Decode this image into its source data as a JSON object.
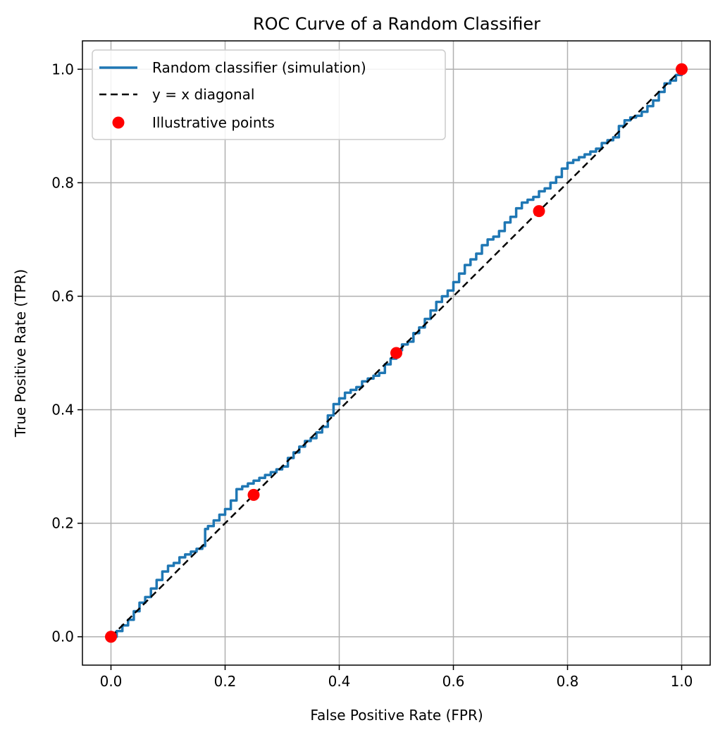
{
  "chart_data": {
    "type": "line",
    "title": "ROC Curve of a Random Classifier",
    "xlabel": "False Positive Rate (FPR)",
    "ylabel": "True Positive Rate (TPR)",
    "xlim": [
      -0.05,
      1.05
    ],
    "ylim": [
      -0.05,
      1.05
    ],
    "xticks": [
      0.0,
      0.2,
      0.4,
      0.6,
      0.8,
      1.0
    ],
    "yticks": [
      0.0,
      0.2,
      0.4,
      0.6,
      0.8,
      1.0
    ],
    "xtick_labels": [
      "0.0",
      "0.2",
      "0.4",
      "0.6",
      "0.8",
      "1.0"
    ],
    "ytick_labels": [
      "0.0",
      "0.2",
      "0.4",
      "0.6",
      "0.8",
      "1.0"
    ],
    "grid": true,
    "legend_position": "upper left",
    "series": [
      {
        "name": "Random classifier (simulation)",
        "kind": "step-line",
        "color": "#1f77b4",
        "x": [
          0.0,
          0.01,
          0.02,
          0.03,
          0.04,
          0.05,
          0.06,
          0.07,
          0.08,
          0.09,
          0.1,
          0.11,
          0.12,
          0.13,
          0.14,
          0.15,
          0.16,
          0.165,
          0.17,
          0.18,
          0.19,
          0.2,
          0.21,
          0.22,
          0.23,
          0.24,
          0.25,
          0.26,
          0.27,
          0.28,
          0.29,
          0.3,
          0.31,
          0.32,
          0.33,
          0.34,
          0.35,
          0.36,
          0.37,
          0.38,
          0.39,
          0.4,
          0.41,
          0.42,
          0.43,
          0.44,
          0.45,
          0.46,
          0.47,
          0.48,
          0.49,
          0.5,
          0.51,
          0.52,
          0.53,
          0.54,
          0.55,
          0.56,
          0.57,
          0.58,
          0.59,
          0.6,
          0.61,
          0.62,
          0.63,
          0.64,
          0.65,
          0.66,
          0.67,
          0.68,
          0.69,
          0.7,
          0.71,
          0.72,
          0.73,
          0.74,
          0.75,
          0.76,
          0.77,
          0.78,
          0.79,
          0.8,
          0.81,
          0.82,
          0.83,
          0.84,
          0.85,
          0.86,
          0.87,
          0.88,
          0.89,
          0.9,
          0.91,
          0.92,
          0.93,
          0.94,
          0.95,
          0.96,
          0.97,
          0.98,
          0.99,
          1.0
        ],
        "y": [
          0.0,
          0.01,
          0.02,
          0.03,
          0.045,
          0.06,
          0.07,
          0.085,
          0.1,
          0.115,
          0.125,
          0.13,
          0.14,
          0.145,
          0.15,
          0.155,
          0.16,
          0.19,
          0.195,
          0.205,
          0.215,
          0.225,
          0.24,
          0.26,
          0.265,
          0.27,
          0.275,
          0.28,
          0.285,
          0.29,
          0.295,
          0.3,
          0.315,
          0.325,
          0.335,
          0.345,
          0.35,
          0.36,
          0.37,
          0.39,
          0.41,
          0.42,
          0.43,
          0.435,
          0.44,
          0.45,
          0.455,
          0.46,
          0.465,
          0.48,
          0.49,
          0.505,
          0.515,
          0.52,
          0.535,
          0.545,
          0.56,
          0.575,
          0.59,
          0.6,
          0.61,
          0.625,
          0.64,
          0.655,
          0.665,
          0.675,
          0.69,
          0.7,
          0.705,
          0.715,
          0.73,
          0.74,
          0.755,
          0.765,
          0.77,
          0.775,
          0.785,
          0.79,
          0.8,
          0.81,
          0.825,
          0.835,
          0.84,
          0.845,
          0.85,
          0.855,
          0.86,
          0.87,
          0.875,
          0.88,
          0.9,
          0.91,
          0.915,
          0.918,
          0.925,
          0.935,
          0.945,
          0.96,
          0.975,
          0.98,
          0.99,
          1.0
        ]
      },
      {
        "name": "y = x diagonal",
        "kind": "dashed-line",
        "color": "#000000",
        "x": [
          0.0,
          1.0
        ],
        "y": [
          0.0,
          1.0
        ]
      },
      {
        "name": "Illustrative points",
        "kind": "scatter",
        "color": "#ff0000",
        "x": [
          0.0,
          0.25,
          0.5,
          0.75,
          1.0
        ],
        "y": [
          0.0,
          0.25,
          0.5,
          0.75,
          1.0
        ]
      }
    ]
  }
}
